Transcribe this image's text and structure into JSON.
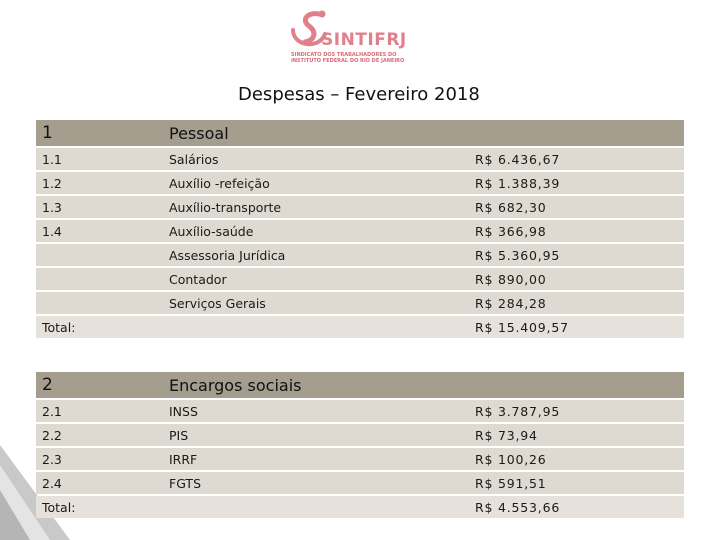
{
  "logo": {
    "name": "SINTIFRJ",
    "subtitle": "SINDICATO DOS TRABALHADORES DO INSTITUTO FEDERAL DO RIO DE JANEIRO"
  },
  "page": {
    "title": "Despesas – Fevereiro 2018"
  },
  "sections": [
    {
      "number": "1",
      "title": "Pessoal",
      "rows": [
        {
          "code": "1.1",
          "label": "Salários",
          "value": "R$ 6.436,67"
        },
        {
          "code": "1.2",
          "label": "Auxílio -refeição",
          "value": "R$ 1.388,39"
        },
        {
          "code": "1.3",
          "label": "Auxílio-transporte",
          "value": "R$ 682,30"
        },
        {
          "code": "1.4",
          "label": "Auxílio-saúde",
          "value": "R$ 366,98"
        },
        {
          "code": "",
          "label": "Assessoria Jurídica",
          "value": "R$ 5.360,95"
        },
        {
          "code": "",
          "label": "Contador",
          "value": "R$ 890,00"
        },
        {
          "code": "",
          "label": "Serviços Gerais",
          "value": "R$ 284,28"
        }
      ],
      "total_label": "Total:",
      "total_value": "R$ 15.409,57"
    },
    {
      "number": "2",
      "title": "Encargos sociais",
      "rows": [
        {
          "code": "2.1",
          "label": "INSS",
          "value": "R$ 3.787,95"
        },
        {
          "code": "2.2",
          "label": "PIS",
          "value": "R$ 73,94"
        },
        {
          "code": "2.3",
          "label": "IRRF",
          "value": "R$ 100,26"
        },
        {
          "code": "2.4",
          "label": "FGTS",
          "value": "R$ 591,51"
        }
      ],
      "total_label": "Total:",
      "total_value": "R$ 4.553,66"
    }
  ],
  "colors": {
    "header_row": "#a59e8e",
    "body_row": "#dedad2",
    "logo": "#e0808a"
  }
}
